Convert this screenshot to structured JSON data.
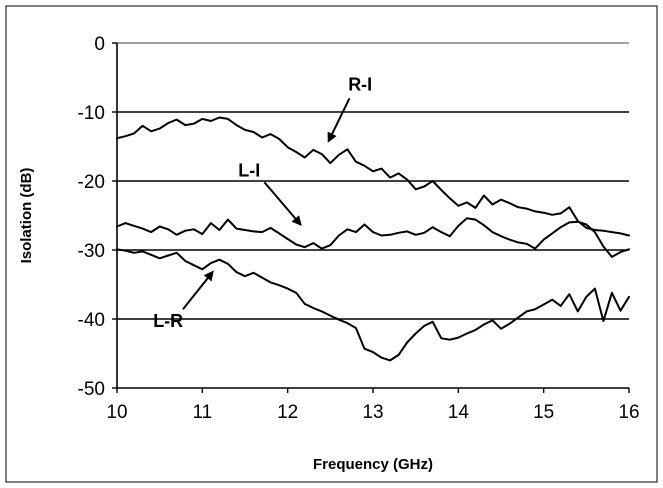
{
  "chart_data": {
    "type": "line",
    "title": "",
    "xlabel": "Frequency (GHz)",
    "ylabel": "Isolation (dB)",
    "xlim": [
      10,
      16
    ],
    "ylim": [
      -50,
      0
    ],
    "x_ticks": [
      10,
      11,
      12,
      13,
      14,
      15,
      16
    ],
    "y_ticks": [
      0,
      -10,
      -20,
      -30,
      -40,
      -50
    ],
    "grid": "horizontal",
    "legend": "none",
    "line_color": "#000000",
    "series": [
      {
        "name": "R-I",
        "x": [
          10.0,
          10.1,
          10.2,
          10.3,
          10.4,
          10.5,
          10.6,
          10.7,
          10.8,
          10.9,
          11.0,
          11.1,
          11.2,
          11.3,
          11.4,
          11.5,
          11.6,
          11.7,
          11.8,
          11.9,
          12.0,
          12.1,
          12.2,
          12.3,
          12.4,
          12.5,
          12.6,
          12.7,
          12.8,
          12.9,
          13.0,
          13.1,
          13.2,
          13.3,
          13.4,
          13.5,
          13.6,
          13.7,
          13.8,
          13.9,
          14.0,
          14.1,
          14.2,
          14.3,
          14.4,
          14.5,
          14.6,
          14.7,
          14.8,
          14.9,
          15.0,
          15.1,
          15.2,
          15.3,
          15.4,
          15.5,
          15.6,
          15.7,
          15.8,
          15.9,
          16.0
        ],
        "y": [
          -13.8,
          -13.5,
          -13.1,
          -12.0,
          -12.8,
          -12.4,
          -11.6,
          -11.1,
          -11.9,
          -11.7,
          -11.0,
          -11.3,
          -10.8,
          -11.0,
          -11.9,
          -12.6,
          -12.9,
          -13.7,
          -13.2,
          -13.9,
          -15.1,
          -15.8,
          -16.6,
          -15.5,
          -16.1,
          -17.4,
          -16.2,
          -15.4,
          -17.2,
          -17.8,
          -18.6,
          -18.2,
          -19.5,
          -18.9,
          -19.8,
          -21.2,
          -20.8,
          -20.0,
          -21.3,
          -22.5,
          -23.6,
          -23.1,
          -23.9,
          -22.1,
          -23.4,
          -22.7,
          -23.2,
          -23.8,
          -24.0,
          -24.4,
          -24.6,
          -24.9,
          -24.7,
          -23.8,
          -25.8,
          -26.8,
          -27.1,
          -27.2,
          -27.4,
          -27.6,
          -27.9
        ]
      },
      {
        "name": "L-I",
        "x": [
          10.0,
          10.1,
          10.2,
          10.3,
          10.4,
          10.5,
          10.6,
          10.7,
          10.8,
          10.9,
          11.0,
          11.1,
          11.2,
          11.3,
          11.4,
          11.5,
          11.6,
          11.7,
          11.8,
          11.9,
          12.0,
          12.1,
          12.2,
          12.3,
          12.4,
          12.5,
          12.6,
          12.7,
          12.8,
          12.9,
          13.0,
          13.1,
          13.2,
          13.3,
          13.4,
          13.5,
          13.6,
          13.7,
          13.8,
          13.9,
          14.0,
          14.1,
          14.2,
          14.3,
          14.4,
          14.5,
          14.6,
          14.7,
          14.8,
          14.9,
          15.0,
          15.1,
          15.2,
          15.3,
          15.4,
          15.5,
          15.6,
          15.7,
          15.8,
          15.9,
          16.0
        ],
        "y": [
          -26.6,
          -26.1,
          -26.5,
          -26.9,
          -27.4,
          -26.6,
          -27.0,
          -27.8,
          -27.2,
          -27.0,
          -27.7,
          -26.1,
          -27.1,
          -25.6,
          -26.9,
          -27.1,
          -27.3,
          -27.4,
          -26.8,
          -27.6,
          -28.4,
          -29.2,
          -29.6,
          -29.0,
          -29.8,
          -29.3,
          -27.9,
          -27.0,
          -27.4,
          -26.3,
          -27.4,
          -27.9,
          -27.8,
          -27.5,
          -27.3,
          -27.8,
          -27.5,
          -26.7,
          -27.4,
          -28.0,
          -26.5,
          -25.4,
          -25.6,
          -26.4,
          -27.4,
          -28.0,
          -28.5,
          -28.9,
          -29.1,
          -29.8,
          -28.5,
          -27.6,
          -26.7,
          -26.0,
          -25.9,
          -26.3,
          -27.4,
          -29.5,
          -31.0,
          -30.3,
          -29.9
        ]
      },
      {
        "name": "L-R",
        "x": [
          10.0,
          10.1,
          10.2,
          10.3,
          10.4,
          10.5,
          10.6,
          10.7,
          10.8,
          10.9,
          11.0,
          11.1,
          11.2,
          11.3,
          11.4,
          11.5,
          11.6,
          11.7,
          11.8,
          11.9,
          12.0,
          12.1,
          12.2,
          12.3,
          12.4,
          12.5,
          12.6,
          12.7,
          12.8,
          12.9,
          13.0,
          13.1,
          13.2,
          13.3,
          13.4,
          13.5,
          13.6,
          13.7,
          13.8,
          13.9,
          14.0,
          14.1,
          14.2,
          14.3,
          14.4,
          14.5,
          14.6,
          14.7,
          14.8,
          14.9,
          15.0,
          15.1,
          15.2,
          15.3,
          15.4,
          15.5,
          15.6,
          15.7,
          15.8,
          15.9,
          16.0
        ],
        "y": [
          -29.9,
          -30.1,
          -30.4,
          -30.2,
          -30.7,
          -31.2,
          -30.8,
          -30.4,
          -31.6,
          -32.2,
          -32.8,
          -31.9,
          -31.4,
          -32.0,
          -33.2,
          -33.8,
          -33.3,
          -34.0,
          -34.7,
          -35.1,
          -35.6,
          -36.2,
          -37.8,
          -38.4,
          -38.9,
          -39.5,
          -40.1,
          -40.6,
          -41.3,
          -44.3,
          -44.8,
          -45.6,
          -46.0,
          -45.2,
          -43.4,
          -42.1,
          -41.0,
          -40.4,
          -42.8,
          -43.0,
          -42.7,
          -42.1,
          -41.6,
          -40.8,
          -40.2,
          -41.4,
          -40.7,
          -39.8,
          -38.9,
          -38.6,
          -37.9,
          -37.2,
          -38.1,
          -36.4,
          -38.9,
          -36.8,
          -35.6,
          -40.3,
          -36.2,
          -38.8,
          -36.8
        ]
      }
    ],
    "annotations": [
      {
        "text": "R-I",
        "x": 12.85,
        "y": -6.0,
        "arrow_to": [
          12.48,
          -14.2
        ]
      },
      {
        "text": "L-I",
        "x": 11.55,
        "y": -18.5,
        "arrow_to": [
          12.15,
          -26.3
        ]
      },
      {
        "text": "L-R",
        "x": 10.6,
        "y": -40.3,
        "arrow_to": [
          11.12,
          -33.2
        ]
      }
    ]
  }
}
